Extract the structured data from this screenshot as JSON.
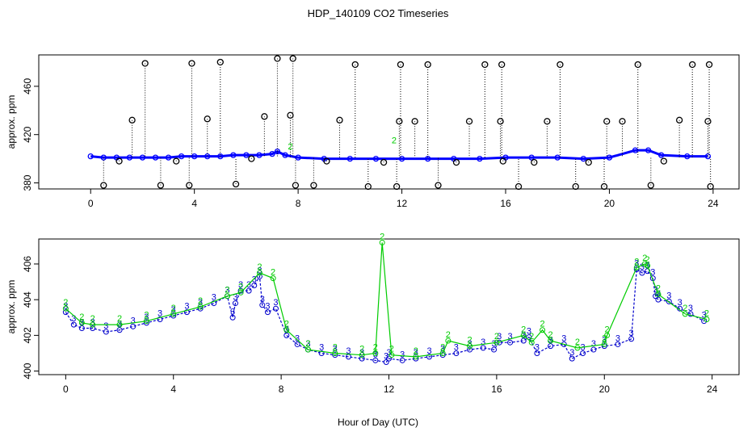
{
  "title": "HDP_140109  CO2 Timeseries",
  "xlabel": "Hour of Day (UTC)",
  "chart_data": [
    {
      "type": "scatter",
      "panel": "top",
      "ylabel": "approx. ppm",
      "xlim": [
        -2,
        25
      ],
      "ylim": [
        375,
        486
      ],
      "xticks": [
        "0",
        "4",
        "8",
        "12",
        "16",
        "20",
        "24"
      ],
      "yticks": [
        "380",
        "420",
        "460"
      ],
      "series": [
        {
          "color": "#0000ff",
          "marker": "circle",
          "x": [
            0,
            0.5,
            1,
            1.5,
            2,
            2.5,
            3,
            3.5,
            4,
            4.5,
            5,
            5.5,
            6,
            6.5,
            7,
            7.2,
            7.5,
            8,
            9,
            10,
            11,
            12,
            13,
            14,
            15,
            16,
            17,
            18,
            19,
            20,
            21,
            21.5,
            22,
            23,
            23.8
          ],
          "y": [
            402,
            401,
            401,
            401,
            401,
            401,
            401,
            402,
            402,
            402,
            402,
            403,
            403,
            403,
            404,
            406,
            403,
            401,
            400,
            400,
            400,
            400,
            400,
            400,
            400,
            401,
            401,
            401,
            400,
            401,
            407,
            407,
            403,
            402,
            402
          ]
        },
        {
          "color": "#000000",
          "marker": "circle",
          "stems": true,
          "x": [
            0.5,
            1.1,
            1.6,
            2.1,
            2.7,
            3.3,
            3.8,
            3.9,
            4.5,
            5.0,
            5.6,
            6.2,
            6.7,
            7.2,
            7.7,
            7.8,
            7.9,
            8.6,
            9.1,
            9.6,
            10.2,
            10.7,
            11.3,
            11.8,
            11.9,
            11.95,
            12.5,
            13.0,
            13.4,
            14.1,
            14.6,
            15.2,
            15.8,
            15.85,
            15.9,
            16.5,
            17.1,
            17.6,
            18.1,
            18.7,
            19.2,
            19.8,
            19.9,
            20.5,
            21.1,
            21.6,
            22.1,
            22.7,
            23.2,
            23.8,
            23.85,
            23.9
          ],
          "y": [
            378,
            398,
            432,
            479,
            378,
            398,
            378,
            479,
            433,
            480,
            379,
            400,
            435,
            483,
            436,
            483,
            378,
            378,
            398,
            432,
            478,
            377,
            397,
            377,
            431,
            478,
            431,
            478,
            378,
            397,
            431,
            478,
            431,
            478,
            398,
            377,
            397,
            431,
            478,
            377,
            397,
            377,
            431,
            431,
            478,
            378,
            398,
            432,
            478,
            431,
            478,
            377
          ]
        },
        {
          "color": "#00cc00",
          "marker": "2",
          "x": [
            7.7,
            11.7
          ],
          "y": [
            405,
            410
          ]
        }
      ]
    },
    {
      "type": "line",
      "panel": "bottom",
      "ylabel": "approx. ppm",
      "xlim": [
        -1,
        25
      ],
      "ylim": [
        399.8,
        407.4
      ],
      "xticks": [
        "0",
        "4",
        "8",
        "12",
        "16",
        "20",
        "24"
      ],
      "yticks": [
        "400",
        "402",
        "404",
        "406"
      ],
      "series": [
        {
          "color": "#0000cc",
          "marker": "3",
          "x": [
            0,
            0.3,
            0.6,
            1,
            1.5,
            2,
            2.5,
            3,
            3.5,
            4,
            4.5,
            5,
            5.5,
            6,
            6.2,
            6.3,
            6.5,
            6.8,
            7.0,
            7.2,
            7.3,
            7.5,
            7.8,
            8.2,
            8.6,
            9,
            9.5,
            10,
            10.5,
            11,
            11.5,
            11.9,
            12.0,
            12.5,
            13,
            13.5,
            14,
            14.5,
            15,
            15.5,
            15.9,
            16.1,
            16.5,
            17,
            17.2,
            17.5,
            18,
            18.5,
            18.8,
            19.2,
            19.6,
            20,
            20.5,
            21.0,
            21.2,
            21.4,
            21.6,
            21.8,
            21.9,
            22.0,
            22.4,
            22.8,
            23.2,
            23.7
          ],
          "y": [
            403.3,
            402.6,
            402.4,
            402.4,
            402.2,
            402.3,
            402.5,
            402.7,
            402.9,
            403.1,
            403.3,
            403.5,
            403.8,
            404.2,
            403.0,
            403.8,
            404.5,
            404.5,
            404.8,
            405.3,
            403.7,
            403.3,
            403.5,
            402.0,
            401.5,
            401.2,
            401.0,
            400.9,
            400.8,
            400.7,
            400.6,
            400.5,
            400.7,
            400.6,
            400.7,
            400.8,
            400.9,
            401.0,
            401.2,
            401.3,
            401.2,
            401.6,
            401.6,
            401.7,
            401.9,
            401.0,
            401.4,
            401.5,
            400.7,
            401.0,
            401.2,
            401.4,
            401.5,
            401.8,
            405.7,
            405.5,
            405.6,
            405.2,
            404.2,
            404.0,
            403.9,
            403.5,
            403.2,
            402.8
          ]
        },
        {
          "color": "#00cc00",
          "marker": "2",
          "x": [
            0,
            0.6,
            1,
            2,
            3,
            4,
            5,
            6,
            6.5,
            7.2,
            7.7,
            8.2,
            9,
            10,
            11,
            11.5,
            11.75,
            12.1,
            13,
            14,
            14.2,
            15,
            16,
            17,
            17.3,
            17.7,
            18,
            19,
            20,
            20.1,
            21.2,
            21.5,
            21.6,
            22,
            23,
            23.8
          ],
          "y": [
            403.5,
            402.7,
            402.6,
            402.6,
            402.8,
            403.2,
            403.6,
            404.2,
            404.4,
            405.5,
            405.2,
            402.3,
            401.2,
            401.0,
            400.9,
            401.0,
            407.2,
            400.9,
            400.8,
            401.0,
            401.7,
            401.4,
            401.6,
            402.0,
            401.6,
            402.3,
            401.7,
            401.3,
            401.5,
            402.0,
            405.8,
            406.0,
            405.9,
            404.3,
            403.2,
            402.9
          ]
        }
      ]
    }
  ]
}
